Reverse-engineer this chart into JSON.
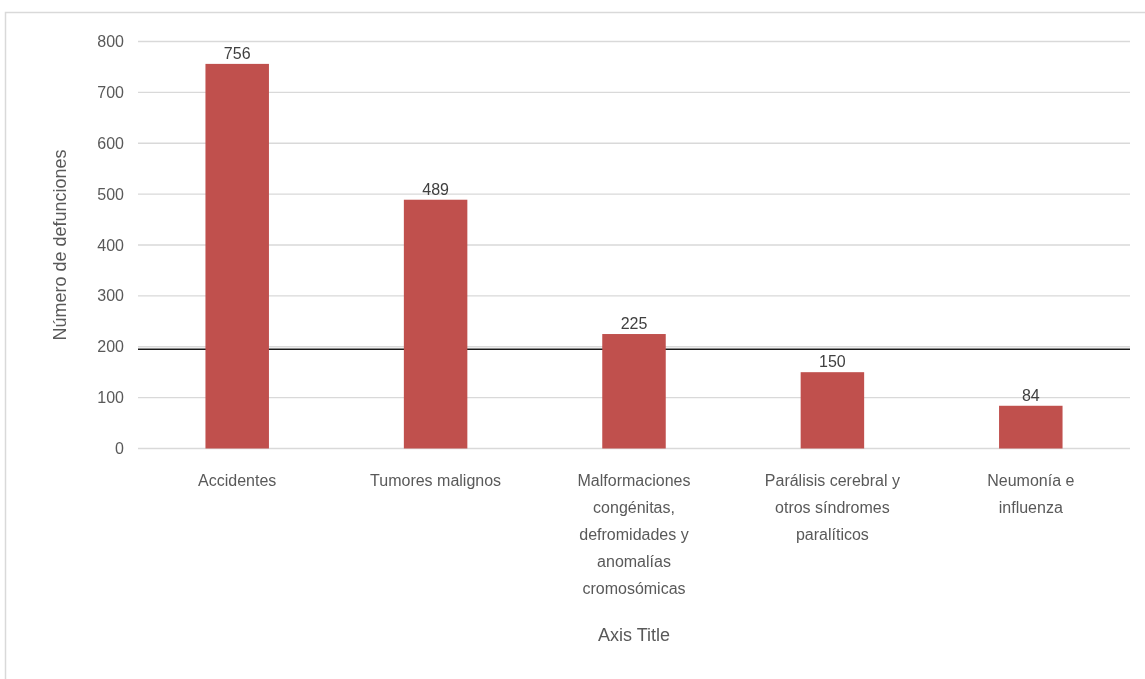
{
  "chart_data": {
    "type": "bar",
    "xlabel": "Axis Title",
    "ylabel": "Número de defunciones",
    "categories": [
      "Accidentes",
      "Tumores malignos",
      "Malformaciones congénitas, defromidades y anomalías cromosómicas",
      "Parálisis cerebral y otros síndromes paralíticos",
      "Neumonía e influenza"
    ],
    "values": [
      756,
      489,
      225,
      150,
      84
    ],
    "color": "#c0504d",
    "ylim": [
      0,
      800
    ],
    "yticks": [
      0,
      100,
      200,
      300,
      400,
      500,
      600,
      700,
      800
    ],
    "grid": "y",
    "data_labels": true,
    "ref_lines": [
      {
        "axis": "y",
        "value": 195,
        "color": "#1a1a1a"
      }
    ]
  }
}
